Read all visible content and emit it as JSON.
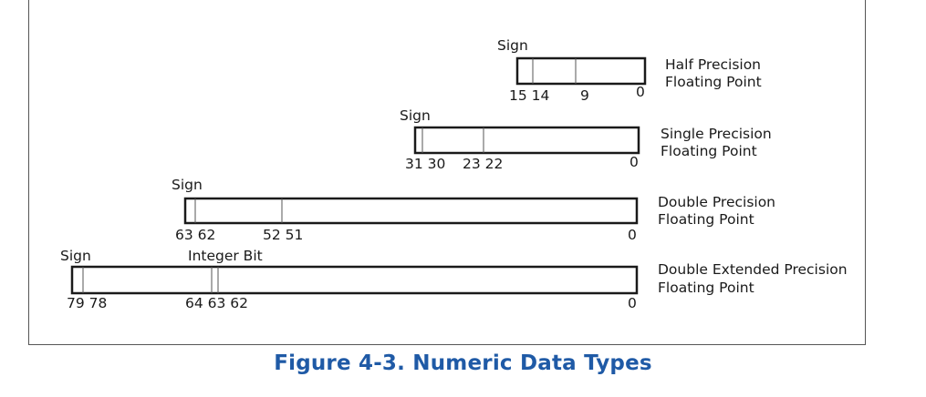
{
  "caption": "Figure 4-3.  Numeric Data Types",
  "formats": [
    {
      "id": "half",
      "label_line1": "Half Precision",
      "label_line2": "Floating Point",
      "sign_label": "Sign",
      "bit_labels": [
        "15 14",
        "9",
        "0"
      ]
    },
    {
      "id": "single",
      "label_line1": "Single Precision",
      "label_line2": "Floating Point",
      "sign_label": "Sign",
      "bit_labels": [
        "31 30",
        "23 22",
        "0"
      ]
    },
    {
      "id": "double",
      "label_line1": "Double Precision",
      "label_line2": "Floating Point",
      "sign_label": "Sign",
      "bit_labels": [
        "63 62",
        "52 51",
        "0"
      ]
    },
    {
      "id": "extended",
      "label_line1": "Double Extended Precision",
      "label_line2": "Floating Point",
      "sign_label": "Sign",
      "integer_bit_label": "Integer Bit",
      "bit_labels": [
        "79 78",
        "64 63 62",
        "0"
      ]
    }
  ]
}
